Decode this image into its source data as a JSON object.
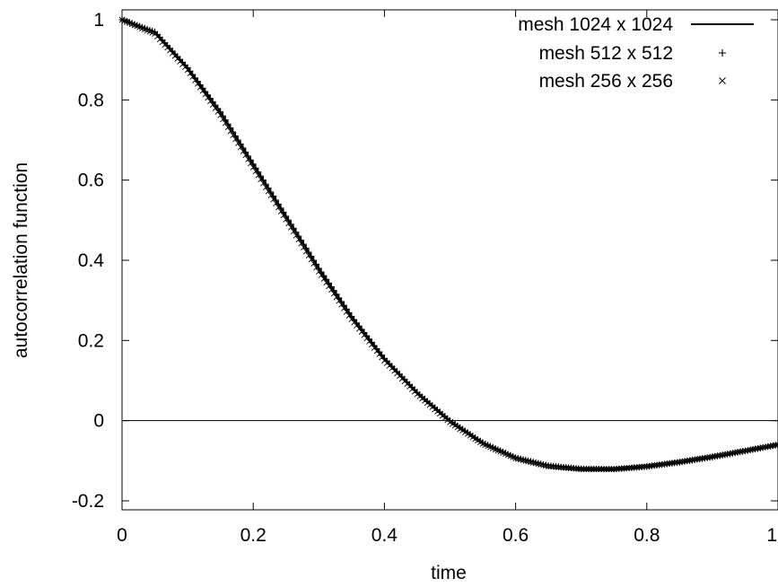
{
  "chart_data": {
    "type": "line",
    "title": "",
    "xlabel": "time",
    "ylabel": "autocorrelation function",
    "xlim": [
      0,
      1
    ],
    "ylim": [
      -0.2,
      1
    ],
    "x_ticks": [
      0,
      0.2,
      0.4,
      0.6,
      0.8,
      1
    ],
    "x_tick_labels": [
      "0",
      "0.2",
      "0.4",
      "0.6",
      "0.8",
      "1"
    ],
    "y_ticks": [
      -0.2,
      0,
      0.2,
      0.4,
      0.6,
      0.8,
      1
    ],
    "y_tick_labels": [
      "-0.2",
      "0",
      "0.2",
      "0.4",
      "0.6",
      "0.8",
      "1"
    ],
    "zero_line": true,
    "grid": false,
    "legend_position": "top-right",
    "series": [
      {
        "name": "mesh 1024 x 1024",
        "style": "line",
        "x": [
          0,
          0.05,
          0.1,
          0.15,
          0.2,
          0.25,
          0.3,
          0.35,
          0.4,
          0.45,
          0.5,
          0.55,
          0.6,
          0.65,
          0.7,
          0.75,
          0.8,
          0.85,
          0.9,
          0.95,
          1.0
        ],
        "y": [
          1.0,
          0.97,
          0.88,
          0.77,
          0.64,
          0.51,
          0.38,
          0.26,
          0.155,
          0.07,
          0.0,
          -0.055,
          -0.092,
          -0.112,
          -0.12,
          -0.121,
          -0.115,
          -0.104,
          -0.091,
          -0.076,
          -0.06
        ]
      },
      {
        "name": "mesh 512 x 512",
        "style": "plus",
        "x": [
          0,
          0.05,
          0.1,
          0.15,
          0.2,
          0.25,
          0.3,
          0.35,
          0.4,
          0.45,
          0.5,
          0.55,
          0.6,
          0.65,
          0.7,
          0.75,
          0.8,
          0.85,
          0.9,
          0.95,
          1.0
        ],
        "y": [
          1.0,
          0.97,
          0.88,
          0.77,
          0.64,
          0.51,
          0.38,
          0.26,
          0.155,
          0.07,
          0.0,
          -0.055,
          -0.092,
          -0.112,
          -0.12,
          -0.121,
          -0.115,
          -0.104,
          -0.091,
          -0.076,
          -0.06
        ]
      },
      {
        "name": "mesh 256 x 256",
        "style": "cross",
        "x": [
          0,
          0.05,
          0.1,
          0.15,
          0.2,
          0.25,
          0.3,
          0.35,
          0.4,
          0.45,
          0.5,
          0.55,
          0.6,
          0.65,
          0.7,
          0.75,
          0.8,
          0.85,
          0.9,
          0.95,
          1.0
        ],
        "y": [
          1.0,
          0.965,
          0.875,
          0.762,
          0.632,
          0.502,
          0.372,
          0.253,
          0.15,
          0.066,
          -0.004,
          -0.058,
          -0.094,
          -0.114,
          -0.121,
          -0.121,
          -0.114,
          -0.103,
          -0.09,
          -0.075,
          -0.06
        ]
      }
    ]
  }
}
